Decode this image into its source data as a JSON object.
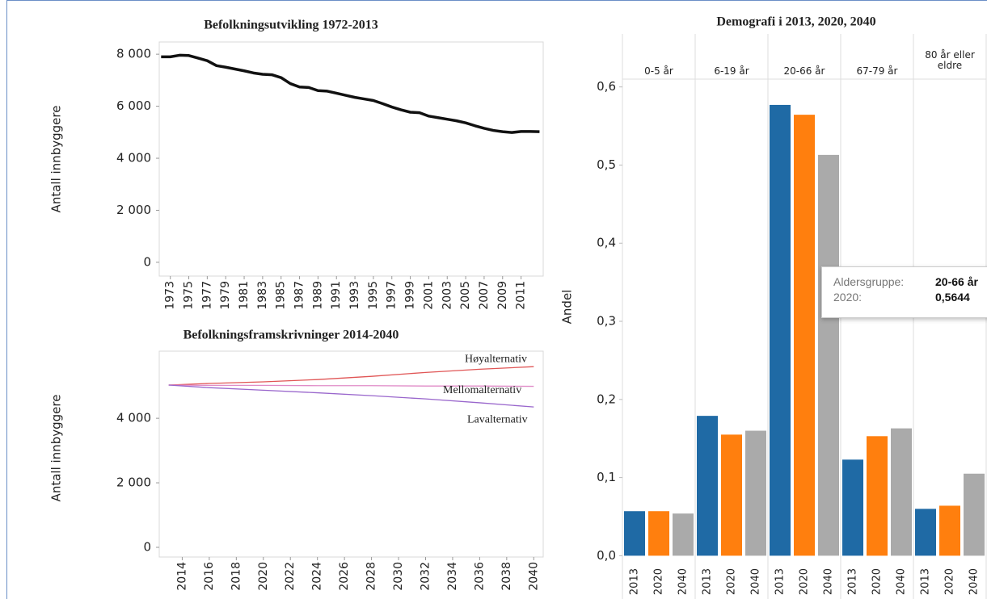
{
  "chart_data": [
    {
      "type": "line",
      "title": "Befolkningsutvikling 1972-2013",
      "y_label": "Antall innbyggere",
      "x": [
        1972,
        1973,
        1974,
        1975,
        1976,
        1977,
        1978,
        1979,
        1980,
        1981,
        1982,
        1983,
        1984,
        1985,
        1986,
        1987,
        1988,
        1989,
        1990,
        1991,
        1992,
        1993,
        1994,
        1995,
        1996,
        1997,
        1998,
        1999,
        2000,
        2001,
        2002,
        2003,
        2004,
        2005,
        2006,
        2007,
        2008,
        2009,
        2010,
        2011,
        2012,
        2013
      ],
      "series": [
        {
          "color": "#111111",
          "values": [
            7900,
            7900,
            7960,
            7950,
            7850,
            7750,
            7560,
            7500,
            7430,
            7360,
            7280,
            7230,
            7210,
            7100,
            6870,
            6740,
            6720,
            6600,
            6580,
            6500,
            6420,
            6340,
            6280,
            6220,
            6100,
            5970,
            5860,
            5770,
            5750,
            5620,
            5560,
            5500,
            5440,
            5360,
            5250,
            5150,
            5070,
            5020,
            4990,
            5030,
            5030,
            5020
          ]
        }
      ],
      "xlim": [
        1971.8,
        2013.4
      ],
      "xticks": [
        1973,
        1975,
        1977,
        1979,
        1981,
        1983,
        1985,
        1987,
        1989,
        1991,
        1993,
        1995,
        1997,
        1999,
        2001,
        2003,
        2005,
        2007,
        2009,
        2011
      ],
      "ylim": [
        -530,
        8470
      ],
      "yticks": [
        {
          "value": 0,
          "label": "0"
        },
        {
          "value": 2000,
          "label": "2 000"
        },
        {
          "value": 4000,
          "label": "4 000"
        },
        {
          "value": 6000,
          "label": "6 000"
        },
        {
          "value": 8000,
          "label": "8 000"
        }
      ]
    },
    {
      "type": "line",
      "title": "Befolkningsframskrivninger 2014-2040",
      "y_label": "Antall innbyggere",
      "x": [
        2013,
        2016,
        2020,
        2024,
        2028,
        2032,
        2036,
        2040
      ],
      "series": [
        {
          "name": "Høyalternativ",
          "color": "#e05555",
          "values": [
            5030,
            5080,
            5130,
            5200,
            5300,
            5420,
            5520,
            5600
          ]
        },
        {
          "name": "Mellomalternativ",
          "color": "#e08cc8",
          "values": [
            5030,
            5020,
            5020,
            5010,
            5010,
            5000,
            5000,
            4990
          ]
        },
        {
          "name": "Lavalternativ",
          "color": "#9966cc",
          "values": [
            5030,
            4950,
            4870,
            4790,
            4700,
            4600,
            4480,
            4350
          ]
        }
      ],
      "xlim": [
        2012.3,
        2040.7
      ],
      "xticks": [
        2014,
        2016,
        2018,
        2020,
        2022,
        2024,
        2026,
        2028,
        2030,
        2032,
        2034,
        2036,
        2038,
        2040
      ],
      "ylim": [
        -300,
        6080
      ],
      "yticks": [
        {
          "value": 0,
          "label": "0"
        },
        {
          "value": 2000,
          "label": "2 000"
        },
        {
          "value": 4000,
          "label": "4 000"
        }
      ]
    },
    {
      "type": "bar",
      "title": "Demografi i  2013, 2020, 2040",
      "y_label": "Andel",
      "categories": [
        "0-5 år",
        "6-19 år",
        "20-66 år",
        "67-79 år",
        "80 år eller eldre"
      ],
      "series": [
        {
          "name": "2013",
          "color": "#1f6aa5",
          "values": [
            0.057,
            0.179,
            0.577,
            0.123,
            0.06
          ]
        },
        {
          "name": "2020",
          "color": "#ff7f0e",
          "values": [
            0.057,
            0.155,
            0.5644,
            0.153,
            0.064
          ]
        },
        {
          "name": "2040",
          "color": "#aaaaaa",
          "values": [
            0.054,
            0.16,
            0.513,
            0.163,
            0.105
          ]
        }
      ],
      "ylim": [
        -0.012,
        0.61
      ],
      "yticks": [
        {
          "value": 0,
          "label": "0,0"
        },
        {
          "value": 0.1,
          "label": "0,1"
        },
        {
          "value": 0.2,
          "label": "0,2"
        },
        {
          "value": 0.3,
          "label": "0,3"
        },
        {
          "value": 0.4,
          "label": "0,4"
        },
        {
          "value": 0.5,
          "label": "0,5"
        },
        {
          "value": 0.6,
          "label": "0,6"
        }
      ],
      "tooltip": {
        "rows": [
          [
            "Aldersgruppe:",
            "20-66 år"
          ],
          [
            "2020:",
            "0,5644"
          ]
        ]
      }
    }
  ]
}
